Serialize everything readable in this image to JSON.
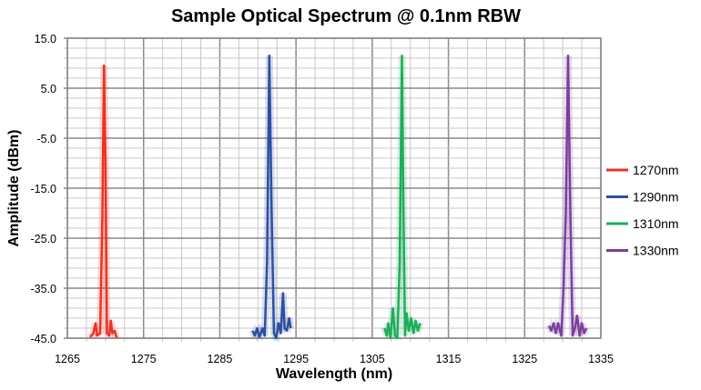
{
  "chart_data": {
    "type": "line",
    "title": "Sample Optical Spectrum @ 0.1nm RBW",
    "xlabel": "Wavelength (nm)",
    "ylabel": "Amplitude (dBm)",
    "xlim": [
      1265,
      1335
    ],
    "ylim": [
      -45,
      15
    ],
    "x_ticks": [
      "1265",
      "1275",
      "1285",
      "1295",
      "1305",
      "1315",
      "1325",
      "1335"
    ],
    "y_ticks": [
      "15.0",
      "5.0",
      "-5.0",
      "-15.0",
      "-25.0",
      "-35.0",
      "-45.0"
    ],
    "grid": true,
    "legend_position": "right",
    "series": [
      {
        "name": "1270nm",
        "color": "#ee3224",
        "points": [
          [
            1268,
            -44.8
          ],
          [
            1268.4,
            -44
          ],
          [
            1268.7,
            -42
          ],
          [
            1268.9,
            -44.5
          ],
          [
            1269.3,
            -44
          ],
          [
            1269.6,
            -20
          ],
          [
            1269.8,
            9.5
          ],
          [
            1270.0,
            -10
          ],
          [
            1270.2,
            -44
          ],
          [
            1270.5,
            -44.5
          ],
          [
            1270.7,
            -41.5
          ],
          [
            1270.9,
            -44
          ],
          [
            1271.2,
            -43.5
          ],
          [
            1271.5,
            -45
          ]
        ]
      },
      {
        "name": "1290nm",
        "color": "#2e4ea1",
        "points": [
          [
            1289.3,
            -43.5
          ],
          [
            1289.6,
            -44.5
          ],
          [
            1289.9,
            -43
          ],
          [
            1290.2,
            -44.8
          ],
          [
            1290.6,
            -43
          ],
          [
            1290.9,
            -44.5
          ],
          [
            1291.2,
            -30
          ],
          [
            1291.5,
            11.5
          ],
          [
            1291.8,
            -20
          ],
          [
            1292.1,
            -44
          ],
          [
            1292.4,
            -45
          ],
          [
            1292.7,
            -42
          ],
          [
            1293.0,
            -44
          ],
          [
            1293.3,
            -36
          ],
          [
            1293.5,
            -43
          ],
          [
            1293.8,
            -43.5
          ],
          [
            1294.1,
            -41
          ],
          [
            1294.3,
            -43
          ]
        ]
      },
      {
        "name": "1310nm",
        "color": "#1fad5b",
        "points": [
          [
            1306.6,
            -43
          ],
          [
            1306.9,
            -44.5
          ],
          [
            1307.1,
            -42
          ],
          [
            1307.4,
            -45
          ],
          [
            1307.7,
            -39
          ],
          [
            1308.0,
            -44.5
          ],
          [
            1308.3,
            -45
          ],
          [
            1308.6,
            -30
          ],
          [
            1308.9,
            11.5
          ],
          [
            1309.1,
            -20
          ],
          [
            1309.3,
            -44.5
          ],
          [
            1309.5,
            -40
          ],
          [
            1309.8,
            -43.5
          ],
          [
            1310.1,
            -41
          ],
          [
            1310.4,
            -44
          ],
          [
            1310.7,
            -41.5
          ],
          [
            1311.0,
            -43.5
          ],
          [
            1311.3,
            -42
          ]
        ]
      },
      {
        "name": "1330nm",
        "color": "#7b3f9e",
        "points": [
          [
            1328.2,
            -42.5
          ],
          [
            1328.5,
            -43.5
          ],
          [
            1328.8,
            -42
          ],
          [
            1329.1,
            -44
          ],
          [
            1329.4,
            -42
          ],
          [
            1329.8,
            -44.5
          ],
          [
            1330.1,
            -35
          ],
          [
            1330.4,
            -20
          ],
          [
            1330.7,
            11.5
          ],
          [
            1331.0,
            -20
          ],
          [
            1331.3,
            -44.5
          ],
          [
            1331.6,
            -43
          ],
          [
            1331.9,
            -40.5
          ],
          [
            1332.2,
            -44.5
          ],
          [
            1332.5,
            -42
          ],
          [
            1332.8,
            -44
          ],
          [
            1333.1,
            -43
          ]
        ]
      }
    ]
  }
}
